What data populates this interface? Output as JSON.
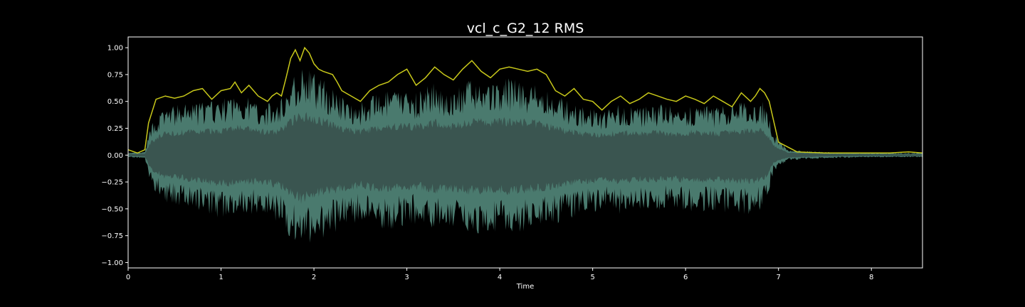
{
  "chart_data": {
    "type": "area",
    "title": "vcl_c_G2_12 RMS",
    "xlabel": "Time",
    "ylabel": "",
    "xlim": [
      0,
      8.55
    ],
    "ylim": [
      -1.05,
      1.1
    ],
    "x_ticks": [
      0,
      1,
      2,
      3,
      4,
      5,
      6,
      7,
      8
    ],
    "y_ticks": [
      -1.0,
      -0.75,
      -0.5,
      -0.25,
      0.0,
      0.25,
      0.5,
      0.75,
      1.0
    ],
    "x_tick_labels": [
      "0",
      "1",
      "2",
      "3",
      "4",
      "5",
      "6",
      "7",
      "8"
    ],
    "y_tick_labels": [
      "−1.00",
      "−0.75",
      "−0.50",
      "−0.25",
      "0.00",
      "0.25",
      "0.50",
      "0.75",
      "1.00"
    ],
    "grid": false,
    "colors": {
      "background": "#000000",
      "waveform_outer": "#4a7a6e",
      "waveform_inner": "#3a5550",
      "rms_line": "#c8c81a",
      "axes": "#ffffff"
    },
    "series": [
      {
        "kind": "rms_envelope",
        "x": [
          0,
          0.1,
          0.18,
          0.22,
          0.3,
          0.4,
          0.5,
          0.6,
          0.7,
          0.8,
          0.9,
          1.0,
          1.1,
          1.15,
          1.22,
          1.3,
          1.4,
          1.5,
          1.55,
          1.6,
          1.65,
          1.7,
          1.75,
          1.8,
          1.85,
          1.9,
          1.95,
          2.0,
          2.05,
          2.1,
          2.2,
          2.25,
          2.3,
          2.4,
          2.5,
          2.6,
          2.7,
          2.8,
          2.9,
          3.0,
          3.1,
          3.2,
          3.3,
          3.4,
          3.5,
          3.6,
          3.7,
          3.8,
          3.9,
          4.0,
          4.1,
          4.2,
          4.3,
          4.4,
          4.5,
          4.6,
          4.7,
          4.8,
          4.9,
          5.0,
          5.1,
          5.2,
          5.3,
          5.4,
          5.5,
          5.6,
          5.7,
          5.8,
          5.9,
          6.0,
          6.1,
          6.2,
          6.3,
          6.4,
          6.5,
          6.6,
          6.7,
          6.75,
          6.8,
          6.85,
          6.9,
          7.0,
          7.2,
          7.5,
          7.8,
          8.0,
          8.2,
          8.4,
          8.55
        ],
        "y": [
          0.05,
          0.02,
          0.05,
          0.3,
          0.52,
          0.55,
          0.53,
          0.55,
          0.6,
          0.62,
          0.52,
          0.6,
          0.62,
          0.68,
          0.58,
          0.65,
          0.55,
          0.5,
          0.55,
          0.58,
          0.55,
          0.72,
          0.9,
          0.98,
          0.88,
          1.0,
          0.95,
          0.85,
          0.8,
          0.78,
          0.75,
          0.68,
          0.6,
          0.55,
          0.5,
          0.6,
          0.65,
          0.68,
          0.75,
          0.8,
          0.65,
          0.72,
          0.82,
          0.75,
          0.7,
          0.8,
          0.88,
          0.78,
          0.72,
          0.8,
          0.82,
          0.8,
          0.78,
          0.8,
          0.75,
          0.6,
          0.55,
          0.62,
          0.52,
          0.5,
          0.42,
          0.5,
          0.55,
          0.48,
          0.52,
          0.58,
          0.55,
          0.52,
          0.5,
          0.55,
          0.52,
          0.48,
          0.55,
          0.5,
          0.45,
          0.58,
          0.5,
          0.55,
          0.62,
          0.58,
          0.5,
          0.12,
          0.03,
          0.02,
          0.02,
          0.02,
          0.02,
          0.03,
          0.02
        ]
      },
      {
        "kind": "waveform_envelope",
        "x": [
          0,
          0.18,
          0.25,
          0.4,
          0.6,
          0.8,
          1.0,
          1.2,
          1.4,
          1.6,
          1.75,
          1.85,
          1.95,
          2.1,
          2.3,
          2.5,
          2.7,
          2.9,
          3.1,
          3.3,
          3.5,
          3.7,
          3.9,
          4.1,
          4.3,
          4.5,
          4.7,
          4.9,
          5.1,
          5.3,
          5.5,
          5.7,
          5.9,
          6.1,
          6.3,
          6.5,
          6.7,
          6.85,
          6.95,
          7.1,
          7.5,
          8.0,
          8.55
        ],
        "upper": [
          0.02,
          0.03,
          0.3,
          0.45,
          0.48,
          0.5,
          0.52,
          0.58,
          0.5,
          0.48,
          0.7,
          0.85,
          0.8,
          0.72,
          0.55,
          0.5,
          0.58,
          0.62,
          0.6,
          0.68,
          0.6,
          0.72,
          0.68,
          0.72,
          0.7,
          0.62,
          0.52,
          0.45,
          0.42,
          0.48,
          0.45,
          0.48,
          0.45,
          0.48,
          0.45,
          0.48,
          0.52,
          0.5,
          0.2,
          0.05,
          0.03,
          0.02,
          0.02
        ],
        "lower": [
          -0.02,
          -0.03,
          -0.3,
          -0.45,
          -0.48,
          -0.55,
          -0.6,
          -0.58,
          -0.55,
          -0.62,
          -0.78,
          -0.92,
          -0.85,
          -0.78,
          -0.7,
          -0.62,
          -0.72,
          -0.68,
          -0.65,
          -0.72,
          -0.7,
          -0.75,
          -0.72,
          -0.75,
          -0.72,
          -0.68,
          -0.62,
          -0.55,
          -0.52,
          -0.55,
          -0.5,
          -0.52,
          -0.5,
          -0.55,
          -0.52,
          -0.55,
          -0.55,
          -0.5,
          -0.15,
          -0.05,
          -0.03,
          -0.02,
          -0.02
        ]
      }
    ]
  }
}
